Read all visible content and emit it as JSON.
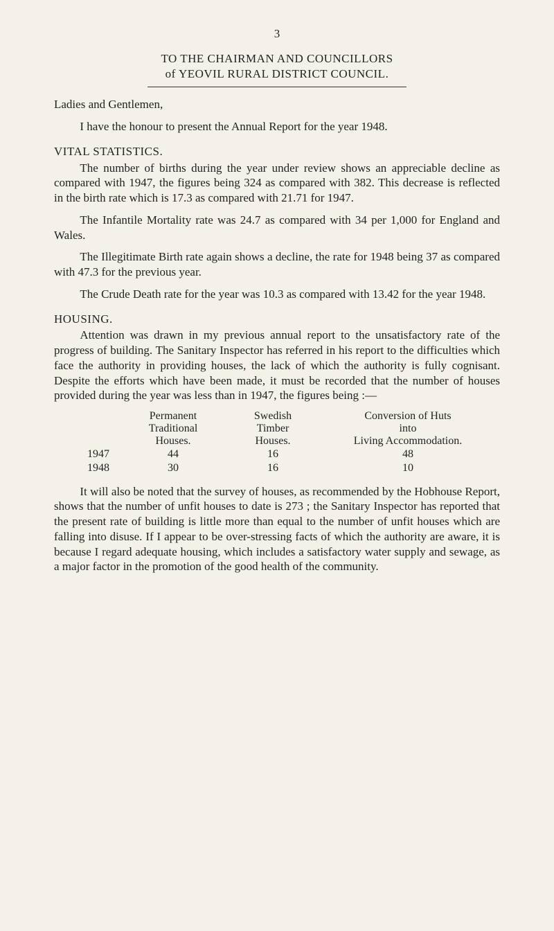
{
  "page_number": "3",
  "title_line1": "TO THE CHAIRMAN AND COUNCILLORS",
  "title_line2": "of YEOVIL RURAL DISTRICT COUNCIL.",
  "salutation": "Ladies and Gentlemen,",
  "intro": "I have the honour to present the Annual Report for the year 1948.",
  "vital_heading": "VITAL STATISTICS.",
  "vital_p1": "The number of births during the year under review shows an appreciable decline as compared with 1947, the figures being 324 as compared with 382. This decrease is reflected in the birth rate which is 17.3 as compared with 21.71 for 1947.",
  "vital_p2": "The Infantile Mortality rate was 24.7 as compared with 34 per 1,000 for England and Wales.",
  "vital_p3": "The Illegitimate Birth rate again shows a decline, the rate for 1948 being 37 as compared with 47.3 for the previous year.",
  "vital_p4": "The Crude Death rate for the year was 10.3 as compared with 13.42 for the year 1948.",
  "housing_heading": "HOUSING.",
  "housing_p1": "Attention was drawn in my previous annual report to the unsatisfactory rate of the progress of building. The Sanitary Inspector has referred in his report to the difficulties which face the authority in providing houses, the lack of which the authority is fully cognisant. Despite the efforts which have been made, it must be recorded that the number of houses provided during the year was less than in 1947, the figures being :—",
  "table": {
    "head": {
      "perm": [
        "Permanent",
        "Traditional",
        "Houses."
      ],
      "sw": [
        "Swedish",
        "Timber",
        "Houses."
      ],
      "conv": [
        "Conversion of Huts",
        "into",
        "Living Accommodation."
      ]
    },
    "rows": [
      {
        "year": "1947",
        "perm": "44",
        "sw": "16",
        "conv": "48"
      },
      {
        "year": "1948",
        "perm": "30",
        "sw": "16",
        "conv": "10"
      }
    ]
  },
  "housing_p2": "It will also be noted that the survey of houses, as recom­mended by the Hobhouse Report, shows that the number of unfit houses to date is 273 ; the Sanitary Inspector has reported that the present rate of building is little more than equal to the number of unfit houses which are falling into disuse. If I appear to be over-stressing facts of which the authority are aware, it is because I regard adequate housing, which includes a satisfactory water supply and sewage, as a major factor in the promotion of the good health of the community."
}
